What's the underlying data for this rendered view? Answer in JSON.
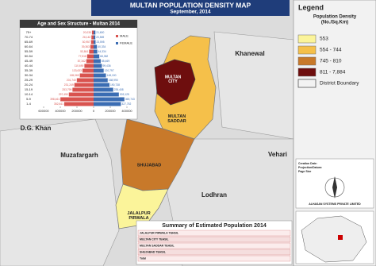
{
  "header": {
    "title": "MULTAN POPULATION DENSITY MAP",
    "subtitle": "September, 2014"
  },
  "legend": {
    "title": "Legend",
    "subtitle": "Population Density\n(No./Sq.Km)",
    "items": [
      {
        "label": "553",
        "color": "#fbf49a"
      },
      {
        "label": "554 - 744",
        "color": "#f5c04a"
      },
      {
        "label": "745 - 810",
        "color": "#c8792a"
      },
      {
        "label": "811 - 7,884",
        "color": "#6e0e0e"
      }
    ],
    "boundary": "District Boundary"
  },
  "places": {
    "khanewal": "Khanewal",
    "dgkhan": "D.G. Khan",
    "muzafargarh": "Muzafargarh",
    "vehari": "Vehari",
    "lodhran": "Lodhran",
    "city": "MULTAN\nCITY",
    "saddar": "MULTAN\nSADDAR",
    "shujabad": "SHUJABAD",
    "jalalpur": "JALALPUR\nPIRWALA"
  },
  "info": {
    "creation": "Creation Date:",
    "projection": "Projection/Datum:",
    "page": "Page Size",
    "company": "ALHASAN SYSTEMS PRIVATE LIMITED"
  },
  "table": {
    "title": "Summary of Estimated Population 2014",
    "rows": [
      "JALALPUR PIRWALA TEHSIL",
      "MULTAN CITY TEHSIL",
      "MULTAN SADDAR TEHSIL",
      "SHUJABAD TEHSIL",
      "Total"
    ]
  },
  "pyramid": {
    "title": "Age and Sex Structure - Multan 2014",
    "categories": [
      "75+",
      "70-74",
      "65-69",
      "60-64",
      "55-59",
      "50-54",
      "45-49",
      "40-44",
      "35-39",
      "30-34",
      "25-29",
      "20-24",
      "15-19",
      "10-14",
      "5-9",
      "1-4"
    ],
    "series": [
      {
        "name": "MALE",
        "color": "#d9534f",
        "values": [
          20030,
          26142,
          30957,
          39363,
          53841,
          77518,
          87342,
          110690,
          133633,
          165060,
          201740,
          231249,
          253799,
          297450,
          398461,
          352641
        ],
        "value_labels": [
          "20,030",
          "26,142",
          "30,957",
          "39,363",
          "53,841",
          "77,518",
          "87,342",
          "110,690",
          "133,633",
          "165,060",
          "201,740",
          "231,249",
          "253,799",
          "297,450",
          "398,461",
          "352,641"
        ]
      },
      {
        "name": "FEMALE",
        "color": "#3b6db3",
        "values": [
          21600,
          20569,
          23595,
          40334,
          44334,
          68382,
          85469,
          99436,
          120797,
          148100,
          168990,
          190738,
          235408,
          303125,
          369743,
          327752
        ],
        "value_labels": [
          "21,600",
          "20,569",
          "23,595",
          "40,334",
          "44,334",
          "68,382",
          "85,469",
          "99,436",
          "120,797",
          "148,100",
          "168,990",
          "190,738",
          "235,408",
          "303,125",
          "369,743",
          "327,752"
        ]
      }
    ],
    "xlim": [
      -600000,
      400000
    ],
    "xticks": [
      {
        "value": -600000,
        "label": "600000"
      },
      {
        "value": -400000,
        "label": "400000"
      },
      {
        "value": -200000,
        "label": "200000"
      },
      0,
      200000,
      400000
    ]
  }
}
